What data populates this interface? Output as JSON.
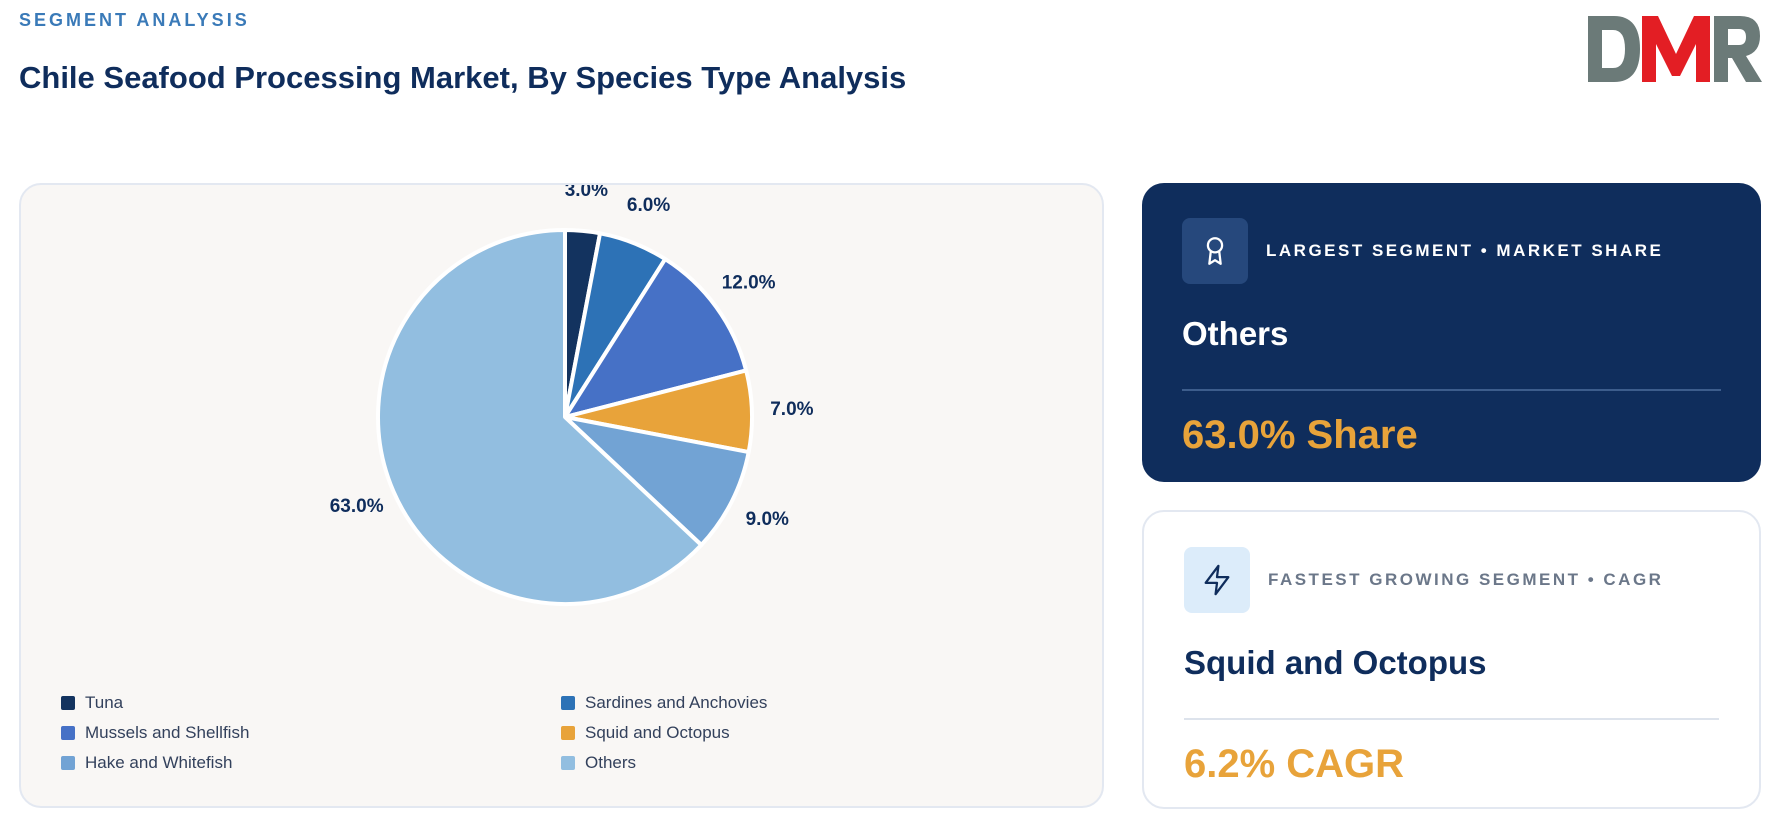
{
  "header": {
    "eyebrow": "SEGMENT ANALYSIS",
    "title": "Chile Seafood Processing Market, By Species Type Analysis"
  },
  "logo": {
    "text": "DMR",
    "colors": {
      "dark": "#6b7a78",
      "red": "#e31e24"
    }
  },
  "chart_data": {
    "type": "pie",
    "title": "",
    "slices": [
      {
        "label": "Tuna",
        "value": 3.0,
        "display": "3.0%",
        "color": "#13335f"
      },
      {
        "label": "Sardines and Anchovies",
        "value": 6.0,
        "display": "6.0%",
        "color": "#2d72b6"
      },
      {
        "label": "Mussels and Shellfish",
        "value": 12.0,
        "display": "12.0%",
        "color": "#4671c6"
      },
      {
        "label": "Squid and Octopus",
        "value": 7.0,
        "display": "7.0%",
        "color": "#e8a33a"
      },
      {
        "label": "Hake and Whitefish",
        "value": 9.0,
        "display": "9.0%",
        "color": "#72a3d4"
      },
      {
        "label": "Others",
        "value": 63.0,
        "display": "63.0%",
        "color": "#92bee0"
      }
    ],
    "start_angle": "12 o'clock, clockwise",
    "legend_position": "bottom"
  },
  "cards": {
    "largest": {
      "icon": "award-icon",
      "label": "LARGEST SEGMENT • MARKET SHARE",
      "value": "Others",
      "metric": "63.0% Share"
    },
    "fastest": {
      "icon": "lightning-icon",
      "label": "FASTEST GROWING SEGMENT • CAGR",
      "value": "Squid and Octopus",
      "metric": "6.2% CAGR"
    }
  },
  "colors": {
    "navy": "#0f2d5c",
    "accent": "#e8a33a",
    "eyebrow": "#3a7ab8",
    "card_bg": "#f9f7f5"
  }
}
